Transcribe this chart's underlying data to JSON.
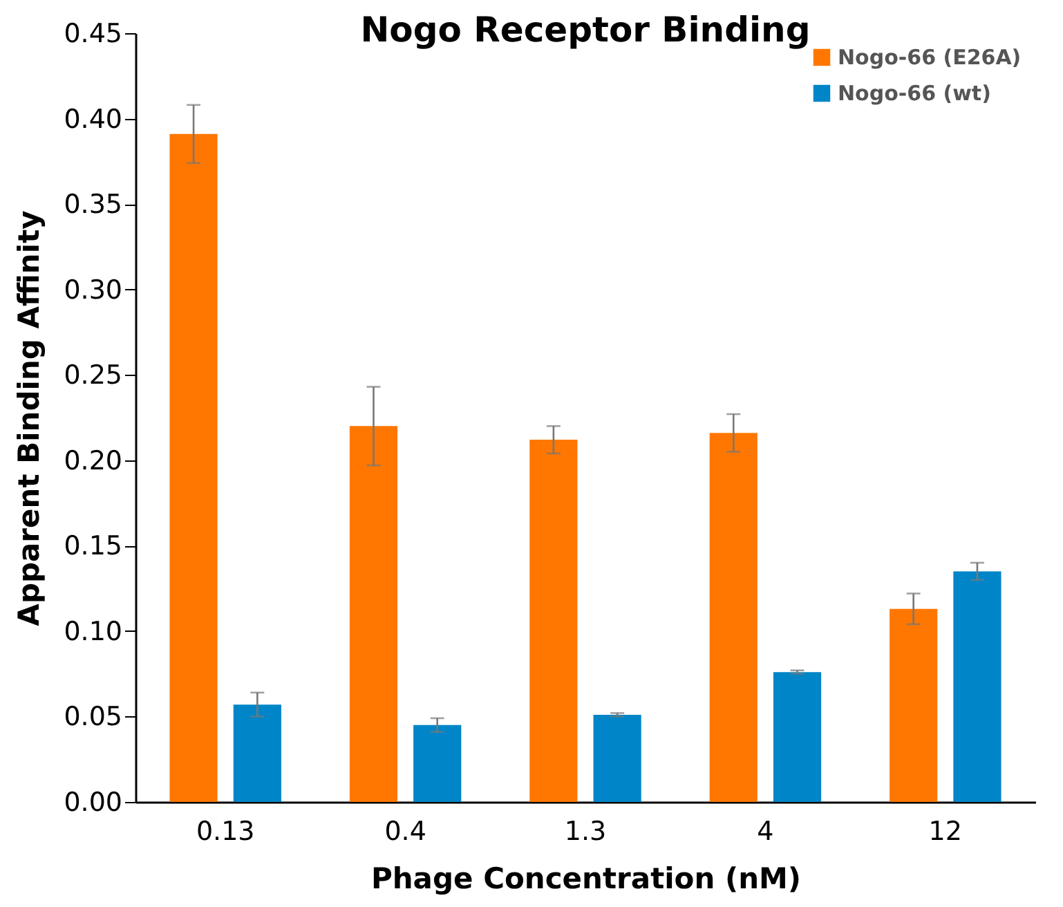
{
  "chart_data": {
    "type": "bar",
    "title": "Nogo Receptor Binding",
    "xlabel": "Phage Concentration (nM)",
    "ylabel": "Apparent Binding Affinity",
    "categories": [
      "0.13",
      "0.4",
      "1.3",
      "4",
      "12"
    ],
    "series": [
      {
        "name": "Nogo-66 (E26A)",
        "color": "#ff7700",
        "values": [
          0.391,
          0.22,
          0.212,
          0.216,
          0.113
        ],
        "errors": [
          0.017,
          0.023,
          0.008,
          0.011,
          0.009
        ]
      },
      {
        "name": "Nogo-66 (wt)",
        "color": "#0085c8",
        "values": [
          0.057,
          0.045,
          0.051,
          0.076,
          0.135
        ],
        "errors": [
          0.007,
          0.004,
          0.001,
          0.001,
          0.005
        ]
      }
    ],
    "ylim": [
      0,
      0.45
    ],
    "yticks": [
      {
        "value": 0,
        "label": "0.00"
      },
      {
        "value": 0.05,
        "label": "0.05"
      },
      {
        "value": 0.1,
        "label": "0.10"
      },
      {
        "value": 0.15,
        "label": "0.15"
      },
      {
        "value": 0.2,
        "label": "0.20"
      },
      {
        "value": 0.25,
        "label": "0.25"
      },
      {
        "value": 0.3,
        "label": "0.30"
      },
      {
        "value": 0.35,
        "label": "0.35"
      },
      {
        "value": 0.4,
        "label": "0.40"
      },
      {
        "value": 0.45,
        "label": "0.45"
      }
    ],
    "legend": "top right",
    "grid": false
  }
}
